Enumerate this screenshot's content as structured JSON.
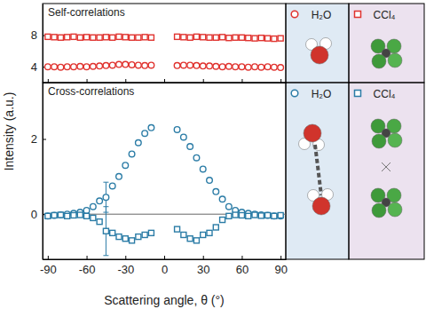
{
  "chart_data": [
    {
      "type": "scatter",
      "title": "Self-correlations",
      "xlim": [
        -94,
        94
      ],
      "xticks": [
        -90,
        -60,
        -30,
        0,
        30,
        60,
        90
      ],
      "ylim": [
        2,
        12
      ],
      "yticks": [
        4,
        8
      ],
      "tick_labels": "y",
      "series": [
        {
          "name": "H₂O",
          "color": "#e0332f",
          "marker": "circle",
          "x": [
            -90,
            -85,
            -80,
            -75,
            -70,
            -65,
            -60,
            -55,
            -50,
            -45,
            -40,
            -35,
            -30,
            -25,
            -20,
            -15,
            -10,
            10,
            15,
            20,
            25,
            30,
            35,
            40,
            45,
            50,
            55,
            60,
            65,
            70,
            75,
            80,
            85,
            90
          ],
          "values": [
            4.0,
            4.0,
            3.95,
            4.0,
            4.0,
            4.05,
            4.0,
            4.05,
            4.1,
            4.15,
            4.2,
            4.3,
            4.3,
            4.25,
            4.2,
            4.15,
            4.2,
            4.15,
            4.2,
            4.2,
            4.15,
            4.1,
            4.1,
            4.05,
            4.0,
            4.05,
            4.0,
            4.0,
            3.95,
            4.0,
            3.95,
            4.0,
            3.95,
            3.9
          ]
        },
        {
          "name": "CCl₄",
          "color": "#e0332f",
          "marker": "square",
          "x": [
            -90,
            -85,
            -80,
            -75,
            -70,
            -65,
            -60,
            -55,
            -50,
            -45,
            -40,
            -35,
            -30,
            -25,
            -20,
            -15,
            -10,
            10,
            15,
            20,
            25,
            30,
            35,
            40,
            45,
            50,
            55,
            60,
            65,
            70,
            75,
            80,
            85,
            90
          ],
          "values": [
            7.8,
            7.75,
            7.7,
            7.75,
            7.8,
            7.7,
            7.75,
            7.7,
            7.7,
            7.75,
            7.7,
            7.8,
            7.75,
            7.7,
            7.7,
            7.75,
            7.7,
            7.8,
            7.75,
            7.7,
            7.8,
            7.75,
            7.7,
            7.7,
            7.75,
            7.65,
            7.7,
            7.7,
            7.65,
            7.6,
            7.65,
            7.6,
            7.55,
            7.6
          ]
        }
      ]
    },
    {
      "type": "scatter",
      "title": "Cross-correlations",
      "x_label": "Scattering angle, θ (°)",
      "y_label": "Intensity (a.u.)",
      "xlim": [
        -94,
        94
      ],
      "xticks": [
        -90,
        -60,
        -30,
        0,
        30,
        60,
        90
      ],
      "ylim": [
        -1.2,
        3.5
      ],
      "yticks": [
        0,
        2
      ],
      "series": [
        {
          "name": "H₂O",
          "color": "#2b7ca6",
          "marker": "circle",
          "x": [
            -90,
            -85,
            -80,
            -75,
            -70,
            -65,
            -60,
            -55,
            -50,
            -45,
            -40,
            -35,
            -30,
            -25,
            -20,
            -15,
            -10,
            10,
            15,
            20,
            25,
            30,
            35,
            40,
            45,
            50,
            55,
            60,
            65,
            70,
            75,
            80,
            85,
            90
          ],
          "values": [
            -0.05,
            -0.03,
            -0.02,
            0.0,
            0.02,
            0.05,
            0.1,
            0.2,
            0.35,
            0.45,
            0.75,
            1.0,
            1.3,
            1.6,
            1.9,
            2.15,
            2.3,
            2.25,
            2.05,
            1.8,
            1.5,
            1.2,
            0.9,
            0.6,
            0.4,
            0.2,
            0.1,
            0.05,
            0.02,
            0.0,
            -0.02,
            -0.03,
            -0.05,
            -0.05
          ],
          "errors": [
            null,
            null,
            null,
            null,
            null,
            null,
            null,
            null,
            null,
            0.4,
            null,
            null,
            null,
            null,
            null,
            null,
            null,
            null,
            null,
            null,
            null,
            null,
            null,
            null,
            null,
            null,
            null,
            null,
            null,
            null,
            null,
            null,
            null,
            null
          ]
        },
        {
          "name": "CCl₄",
          "color": "#2b7ca6",
          "marker": "square",
          "x": [
            -90,
            -85,
            -80,
            -75,
            -70,
            -65,
            -60,
            -55,
            -50,
            -45,
            -40,
            -35,
            -30,
            -25,
            -20,
            -15,
            -10,
            10,
            15,
            20,
            25,
            30,
            35,
            40,
            45,
            50,
            55,
            60,
            65,
            70,
            75,
            80,
            85,
            90
          ],
          "values": [
            -0.05,
            -0.03,
            -0.02,
            -0.05,
            -0.03,
            -0.02,
            -0.05,
            -0.1,
            -0.2,
            -0.45,
            -0.5,
            -0.6,
            -0.65,
            -0.7,
            -0.6,
            -0.55,
            -0.5,
            -0.4,
            -0.55,
            -0.65,
            -0.7,
            -0.55,
            -0.5,
            -0.35,
            -0.15,
            -0.05,
            -0.02,
            -0.03,
            -0.05,
            -0.02,
            -0.04,
            -0.03,
            -0.05,
            -0.03
          ],
          "errors": [
            null,
            null,
            null,
            null,
            null,
            null,
            null,
            null,
            null,
            0.65,
            null,
            null,
            null,
            null,
            null,
            null,
            null,
            null,
            null,
            null,
            null,
            null,
            null,
            null,
            null,
            null,
            null,
            null,
            null,
            null,
            null,
            null,
            null,
            null
          ]
        }
      ]
    }
  ]
}
